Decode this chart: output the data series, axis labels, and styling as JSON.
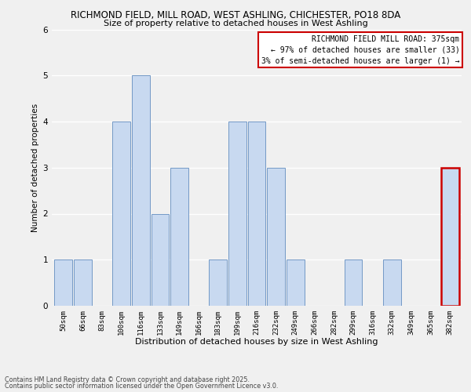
{
  "title1": "RICHMOND FIELD, MILL ROAD, WEST ASHLING, CHICHESTER, PO18 8DA",
  "title2": "Size of property relative to detached houses in West Ashling",
  "xlabel": "Distribution of detached houses by size in West Ashling",
  "ylabel": "Number of detached properties",
  "bar_labels": [
    "50sqm",
    "66sqm",
    "83sqm",
    "100sqm",
    "116sqm",
    "133sqm",
    "149sqm",
    "166sqm",
    "183sqm",
    "199sqm",
    "216sqm",
    "232sqm",
    "249sqm",
    "266sqm",
    "282sqm",
    "299sqm",
    "316sqm",
    "332sqm",
    "349sqm",
    "365sqm",
    "382sqm"
  ],
  "bar_values": [
    1,
    1,
    0,
    4,
    5,
    2,
    3,
    0,
    1,
    4,
    4,
    3,
    1,
    0,
    0,
    1,
    0,
    1,
    0,
    0,
    3
  ],
  "bar_color": "#c8d9f0",
  "highlight_bar_index": 20,
  "highlight_bar_edge_color": "#cc0000",
  "normal_bar_edge_color": "#7399c6",
  "ylim": [
    0,
    6
  ],
  "yticks": [
    0,
    1,
    2,
    3,
    4,
    5,
    6
  ],
  "legend_title": "RICHMOND FIELD MILL ROAD: 375sqm",
  "legend_line1": "← 97% of detached houses are smaller (33)",
  "legend_line2": "3% of semi-detached houses are larger (1) →",
  "legend_box_color": "#cc0000",
  "footnote1": "Contains HM Land Registry data © Crown copyright and database right 2025.",
  "footnote2": "Contains public sector information licensed under the Open Government Licence v3.0.",
  "bg_color": "#f0f0f0",
  "grid_color": "#ffffff",
  "title1_fontsize": 8.5,
  "title2_fontsize": 8.0,
  "xlabel_fontsize": 8,
  "ylabel_fontsize": 7.5,
  "tick_fontsize": 6.5,
  "legend_fontsize": 7,
  "footnote_fontsize": 5.8
}
